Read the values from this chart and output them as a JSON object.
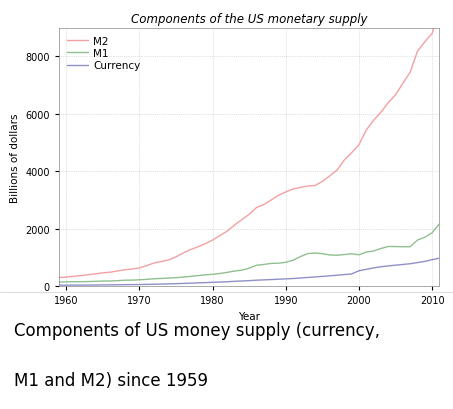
{
  "title": "Components of the US monetary supply",
  "xlabel": "Year",
  "ylabel": "Billions of dollars",
  "caption_line1": "Components of US money supply (currency,",
  "caption_line2": "M1 and M2) since 1959",
  "years": [
    1959,
    1960,
    1961,
    1962,
    1963,
    1964,
    1965,
    1966,
    1967,
    1968,
    1969,
    1970,
    1971,
    1972,
    1973,
    1974,
    1975,
    1976,
    1977,
    1978,
    1979,
    1980,
    1981,
    1982,
    1983,
    1984,
    1985,
    1986,
    1987,
    1988,
    1989,
    1990,
    1991,
    1992,
    1993,
    1994,
    1995,
    1996,
    1997,
    1998,
    1999,
    2000,
    2001,
    2002,
    2003,
    2004,
    2005,
    2006,
    2007,
    2008,
    2009,
    2010,
    2011
  ],
  "M2": [
    297,
    312,
    335,
    362,
    393,
    424,
    459,
    480,
    524,
    566,
    590,
    628,
    710,
    802,
    855,
    908,
    1016,
    1152,
    1270,
    1366,
    1474,
    1600,
    1756,
    1910,
    2127,
    2311,
    2497,
    2734,
    2833,
    2995,
    3159,
    3278,
    3380,
    3434,
    3484,
    3502,
    3642,
    3833,
    4038,
    4386,
    4643,
    4921,
    5433,
    5771,
    6053,
    6386,
    6660,
    7060,
    7450,
    8179,
    8511,
    8796,
    9646
  ],
  "M1": [
    140,
    143,
    149,
    150,
    155,
    163,
    172,
    175,
    185,
    202,
    205,
    216,
    232,
    252,
    264,
    277,
    291,
    310,
    335,
    363,
    389,
    408,
    437,
    474,
    521,
    552,
    620,
    724,
    750,
    787,
    795,
    826,
    897,
    1024,
    1129,
    1150,
    1127,
    1081,
    1073,
    1095,
    1124,
    1087,
    1183,
    1219,
    1306,
    1376,
    1374,
    1368,
    1369,
    1601,
    1696,
    1855,
    2165
  ],
  "Currency": [
    28,
    29,
    30,
    31,
    33,
    35,
    38,
    40,
    43,
    47,
    49,
    52,
    56,
    61,
    67,
    74,
    81,
    89,
    98,
    108,
    118,
    129,
    138,
    147,
    163,
    175,
    187,
    202,
    213,
    224,
    237,
    248,
    260,
    278,
    297,
    316,
    334,
    354,
    376,
    398,
    421,
    531,
    580,
    631,
    670,
    700,
    726,
    750,
    776,
    816,
    857,
    916,
    970
  ],
  "M2_color": "#f4a0a0",
  "M1_color": "#90c090",
  "Currency_color": "#9090c8",
  "bg_color": "#ffffff",
  "caption_bg_color": "#e8e8f0",
  "grid_color": "#aaaaaa",
  "xlim": [
    1959,
    2011
  ],
  "ylim": [
    0,
    9000
  ],
  "yticks": [
    0,
    2000,
    4000,
    6000,
    8000
  ],
  "xticks": [
    1960,
    1970,
    1980,
    1990,
    2000,
    2010
  ],
  "title_fontsize": 8.5,
  "label_fontsize": 7.5,
  "tick_fontsize": 7,
  "legend_fontsize": 7.5,
  "caption_fontsize": 12
}
